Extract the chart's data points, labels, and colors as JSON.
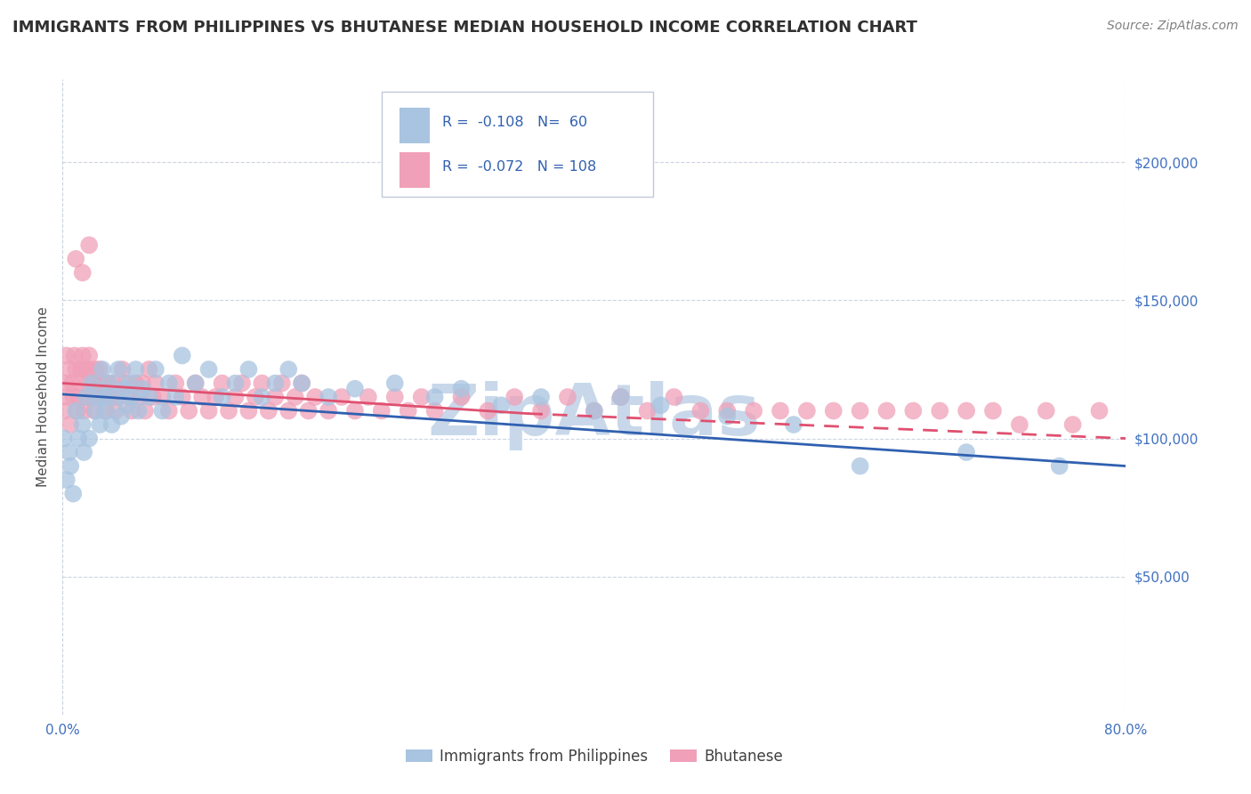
{
  "title": "IMMIGRANTS FROM PHILIPPINES VS BHUTANESE MEDIAN HOUSEHOLD INCOME CORRELATION CHART",
  "source": "Source: ZipAtlas.com",
  "ylabel": "Median Household Income",
  "ytick_labels": [
    "$50,000",
    "$100,000",
    "$150,000",
    "$200,000"
  ],
  "ytick_values": [
    50000,
    100000,
    150000,
    200000
  ],
  "legend_label1": "Immigrants from Philippines",
  "legend_label2": "Bhutanese",
  "R1": -0.108,
  "N1": 60,
  "R2": -0.072,
  "N2": 108,
  "color1": "#a8c4e0",
  "color2": "#f0a0b8",
  "line_color1": "#3060b0",
  "line_color2": "#e05070",
  "watermark_color": "#c8d8ea",
  "title_color": "#303030",
  "title_fontsize": 13,
  "source_color": "#808080",
  "axis_label_color": "#4070c0",
  "xlim": [
    0,
    0.8
  ],
  "ylim": [
    0,
    230000
  ],
  "philippines_x": [
    0.001,
    0.003,
    0.005,
    0.006,
    0.008,
    0.01,
    0.012,
    0.015,
    0.016,
    0.018,
    0.02,
    0.022,
    0.025,
    0.027,
    0.028,
    0.03,
    0.032,
    0.033,
    0.035,
    0.037,
    0.04,
    0.042,
    0.044,
    0.046,
    0.048,
    0.05,
    0.052,
    0.055,
    0.057,
    0.06,
    0.065,
    0.07,
    0.075,
    0.08,
    0.085,
    0.09,
    0.1,
    0.11,
    0.12,
    0.13,
    0.14,
    0.15,
    0.16,
    0.17,
    0.18,
    0.2,
    0.22,
    0.25,
    0.28,
    0.3,
    0.33,
    0.36,
    0.4,
    0.42,
    0.45,
    0.5,
    0.55,
    0.6,
    0.68,
    0.75
  ],
  "philippines_y": [
    100000,
    85000,
    95000,
    90000,
    80000,
    110000,
    100000,
    105000,
    95000,
    115000,
    100000,
    120000,
    110000,
    115000,
    105000,
    125000,
    115000,
    110000,
    120000,
    105000,
    115000,
    125000,
    108000,
    118000,
    112000,
    120000,
    115000,
    125000,
    110000,
    118000,
    115000,
    125000,
    110000,
    120000,
    115000,
    130000,
    120000,
    125000,
    115000,
    120000,
    125000,
    115000,
    120000,
    125000,
    120000,
    115000,
    118000,
    120000,
    115000,
    118000,
    112000,
    115000,
    110000,
    115000,
    112000,
    108000,
    105000,
    90000,
    95000,
    90000
  ],
  "bhutanese_x": [
    0.001,
    0.002,
    0.003,
    0.004,
    0.005,
    0.006,
    0.007,
    0.008,
    0.009,
    0.01,
    0.011,
    0.012,
    0.013,
    0.014,
    0.015,
    0.016,
    0.017,
    0.018,
    0.019,
    0.02,
    0.021,
    0.022,
    0.023,
    0.024,
    0.025,
    0.026,
    0.027,
    0.028,
    0.029,
    0.03,
    0.032,
    0.034,
    0.036,
    0.038,
    0.04,
    0.042,
    0.045,
    0.047,
    0.05,
    0.052,
    0.055,
    0.058,
    0.06,
    0.062,
    0.065,
    0.068,
    0.07,
    0.075,
    0.08,
    0.085,
    0.09,
    0.095,
    0.1,
    0.105,
    0.11,
    0.115,
    0.12,
    0.125,
    0.13,
    0.135,
    0.14,
    0.145,
    0.15,
    0.155,
    0.16,
    0.165,
    0.17,
    0.175,
    0.18,
    0.185,
    0.19,
    0.2,
    0.21,
    0.22,
    0.23,
    0.24,
    0.25,
    0.26,
    0.27,
    0.28,
    0.3,
    0.32,
    0.34,
    0.36,
    0.38,
    0.4,
    0.42,
    0.44,
    0.46,
    0.48,
    0.5,
    0.52,
    0.54,
    0.56,
    0.58,
    0.6,
    0.62,
    0.64,
    0.66,
    0.68,
    0.7,
    0.72,
    0.74,
    0.76,
    0.78,
    0.01,
    0.015,
    0.02
  ],
  "bhutanese_y": [
    110000,
    120000,
    130000,
    115000,
    125000,
    105000,
    120000,
    115000,
    130000,
    125000,
    110000,
    115000,
    120000,
    125000,
    130000,
    110000,
    125000,
    115000,
    120000,
    130000,
    125000,
    115000,
    120000,
    110000,
    125000,
    115000,
    120000,
    125000,
    115000,
    120000,
    110000,
    120000,
    115000,
    120000,
    110000,
    115000,
    125000,
    120000,
    115000,
    110000,
    120000,
    115000,
    120000,
    110000,
    125000,
    115000,
    120000,
    115000,
    110000,
    120000,
    115000,
    110000,
    120000,
    115000,
    110000,
    115000,
    120000,
    110000,
    115000,
    120000,
    110000,
    115000,
    120000,
    110000,
    115000,
    120000,
    110000,
    115000,
    120000,
    110000,
    115000,
    110000,
    115000,
    110000,
    115000,
    110000,
    115000,
    110000,
    115000,
    110000,
    115000,
    110000,
    115000,
    110000,
    115000,
    110000,
    115000,
    110000,
    115000,
    110000,
    110000,
    110000,
    110000,
    110000,
    110000,
    110000,
    110000,
    110000,
    110000,
    110000,
    110000,
    105000,
    110000,
    105000,
    110000,
    165000,
    160000,
    170000
  ]
}
